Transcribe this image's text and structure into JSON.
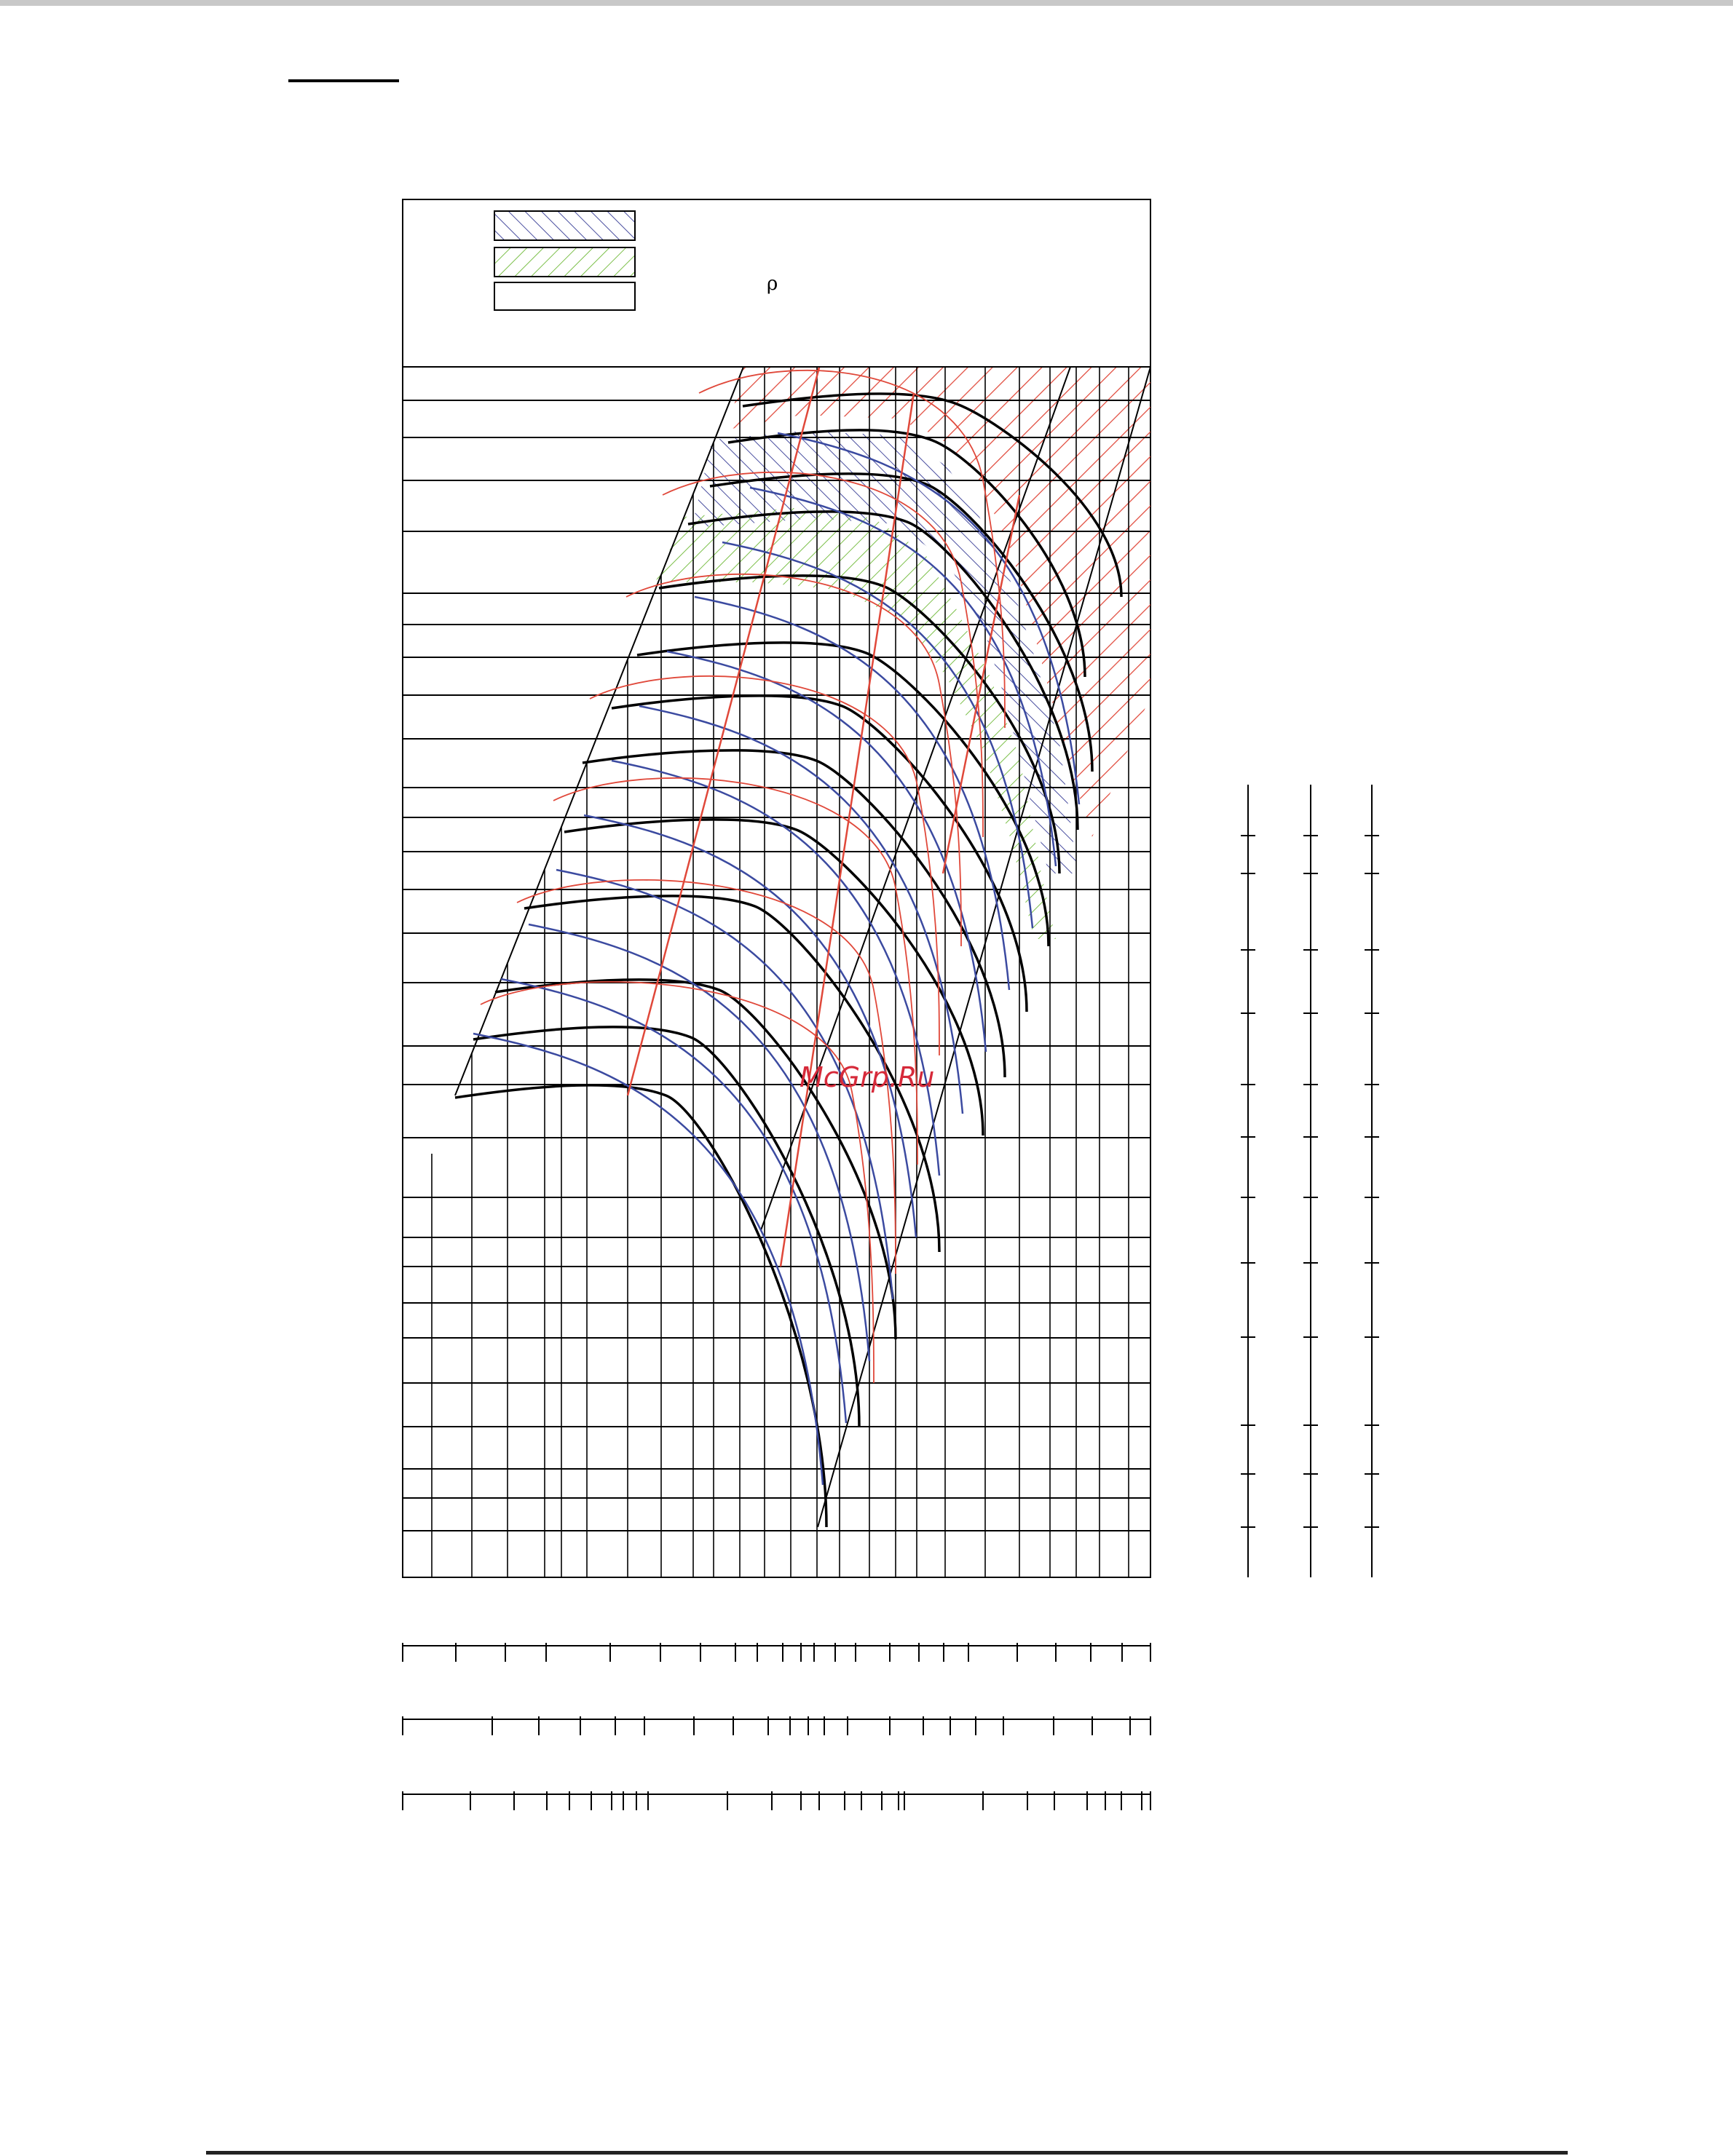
{
  "chart_data": {
    "type": "line",
    "title": "",
    "xlabel": "",
    "ylabel": "",
    "legend": {
      "placement": "top-left",
      "items": [
        {
          "pattern": "hatch-blue",
          "color": "#4a4fa0",
          "label": ""
        },
        {
          "pattern": "hatch-green",
          "color": "#7cc04a",
          "label": ""
        },
        {
          "pattern": "empty",
          "color": "#000000",
          "label": ""
        }
      ],
      "symbol": "ρ"
    },
    "regions": [
      {
        "name": "red-hatched",
        "color": "#e0483a"
      },
      {
        "name": "blue-hatched",
        "color": "#4a4fa0"
      },
      {
        "name": "green-hatched",
        "color": "#7cc04a"
      }
    ],
    "series": [
      {
        "kind": "fan-curves",
        "color": "#000000"
      },
      {
        "kind": "efficiency-curves",
        "color": "#e0483a"
      },
      {
        "kind": "power-curves",
        "color": "#3b4aa0"
      },
      {
        "kind": "speed-lines",
        "color": "#e0483a"
      }
    ],
    "grid": true,
    "bottom_scales": 3,
    "right_scales": 3
  },
  "watermark": {
    "text": "McGrp.Ru",
    "color": "#d62a3a"
  }
}
